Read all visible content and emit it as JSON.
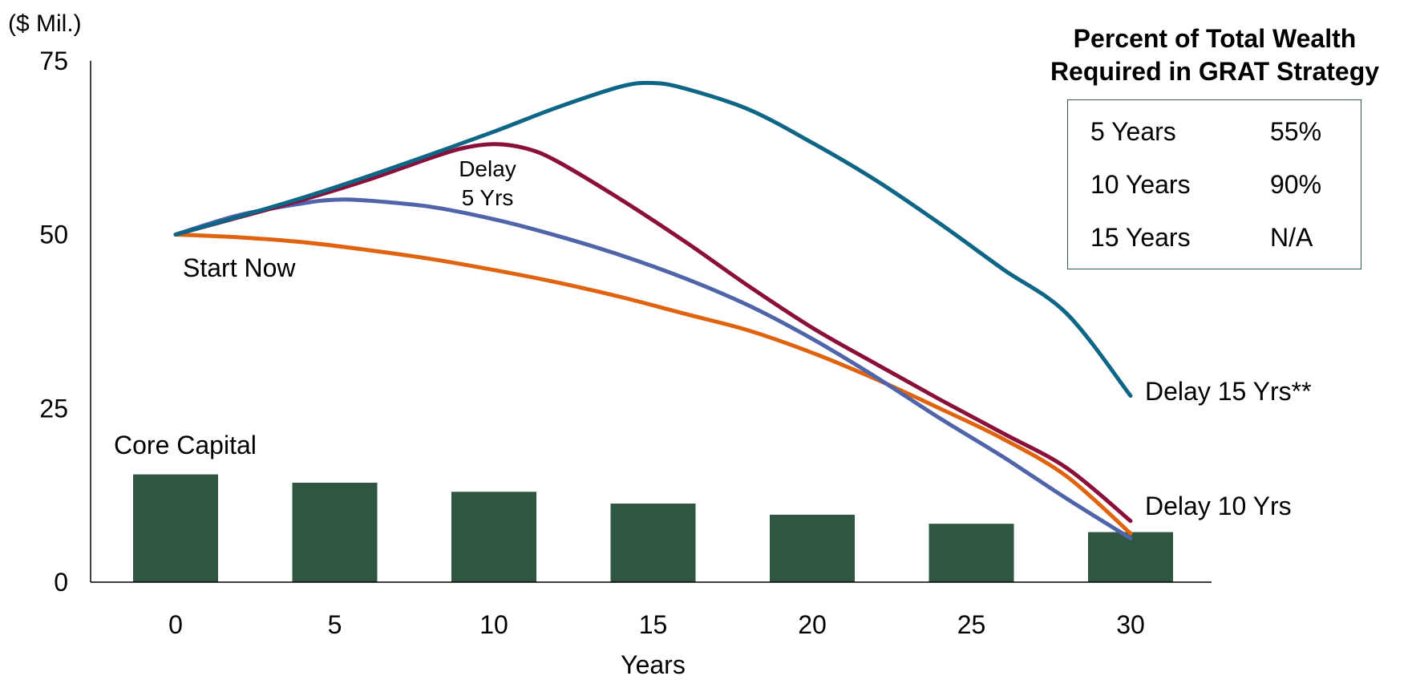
{
  "chart_data": {
    "type": "line",
    "ylabel": "($ Mil.)",
    "xlabel": "Years",
    "ylim": [
      0,
      75
    ],
    "yticks": [
      0,
      25,
      50,
      75
    ],
    "xlim": [
      0,
      30
    ],
    "xticks": [
      0,
      5,
      10,
      15,
      20,
      25,
      30
    ],
    "grid": false,
    "bars": {
      "label": "Core Capital",
      "color": "#2f5640",
      "x": [
        0,
        5,
        10,
        15,
        20,
        25,
        30
      ],
      "values": [
        15.5,
        14.3,
        13.0,
        11.3,
        9.7,
        8.4,
        7.2
      ]
    },
    "series": [
      {
        "name": "Start Now",
        "color": "#e06410",
        "x": [
          0,
          2,
          4,
          6,
          8,
          10,
          12,
          14,
          16,
          18,
          20,
          22,
          24,
          26,
          28,
          30
        ],
        "values": [
          50,
          49.6,
          48.9,
          47.8,
          46.5,
          44.9,
          43.1,
          41.0,
          38.6,
          36.2,
          33.0,
          29.2,
          25.0,
          20.6,
          15.2,
          7.0
        ]
      },
      {
        "name": "Delay 5 Yrs",
        "color": "#5064aa",
        "x": [
          0,
          2,
          4,
          5,
          6,
          8,
          10,
          12,
          14,
          16,
          18,
          20,
          22,
          24,
          26,
          28,
          30
        ],
        "values": [
          50,
          52.8,
          54.5,
          55.0,
          54.9,
          54.0,
          52.2,
          49.8,
          47.0,
          43.7,
          39.8,
          35.0,
          29.5,
          23.6,
          18.0,
          12.0,
          6.3
        ]
      },
      {
        "name": "Delay 10 Yrs",
        "color": "#8a0f3a",
        "x": [
          0,
          2,
          4,
          6,
          8,
          9,
          10,
          11,
          12,
          14,
          16,
          18,
          20,
          22,
          24,
          26,
          28,
          30
        ],
        "values": [
          50,
          52.5,
          55.0,
          57.8,
          61.0,
          62.4,
          63.0,
          62.4,
          60.5,
          55.0,
          49.0,
          42.6,
          36.6,
          31.4,
          26.3,
          21.4,
          16.4,
          8.8
        ]
      },
      {
        "name": "Delay 15 Yrs**",
        "color": "#0d6686",
        "x": [
          0,
          2,
          4,
          6,
          8,
          10,
          12,
          14,
          15,
          16,
          18,
          20,
          22,
          24,
          26,
          28,
          30
        ],
        "values": [
          50,
          52.6,
          55.3,
          58.3,
          61.5,
          64.8,
          68.3,
          71.3,
          71.8,
          71.0,
          68.0,
          63.2,
          57.8,
          51.6,
          45.0,
          38.6,
          26.8
        ]
      }
    ],
    "annotations": [
      {
        "name": "Start Now",
        "text": "Start Now"
      },
      {
        "name": "Delay 5 Yrs",
        "text": "Delay\n5 Yrs"
      },
      {
        "name": "Delay 10 Yrs",
        "text": "Delay 10 Yrs"
      },
      {
        "name": "Delay 15 Yrs**",
        "text": "Delay 15 Yrs**"
      }
    ]
  },
  "wealth_table": {
    "title_line1": "Percent of Total Wealth",
    "title_line2": "Required in GRAT Strategy",
    "rows": [
      {
        "label": "5 Years",
        "value": "55%"
      },
      {
        "label": "10 Years",
        "value": "90%"
      },
      {
        "label": "15 Years",
        "value": "N/A"
      }
    ]
  }
}
